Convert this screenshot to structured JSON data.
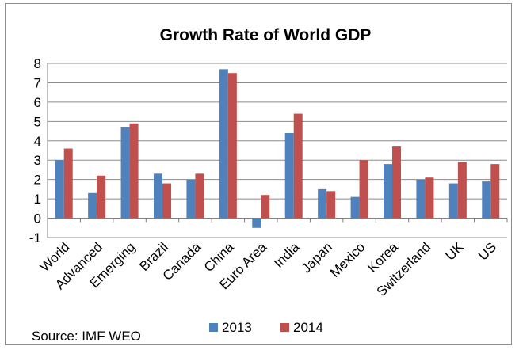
{
  "chart_data": {
    "type": "bar",
    "title": "Growth Rate of World GDP",
    "xlabel": "",
    "ylabel": "",
    "categories": [
      "World",
      "Advanced",
      "Emerging",
      "Brazil",
      "Canada",
      "China",
      "Euro Area",
      "India",
      "Japan",
      "Mexico",
      "Korea",
      "Switzerland",
      "UK",
      "US"
    ],
    "series": [
      {
        "name": "2013",
        "color": "#4f81bd",
        "values": [
          3.0,
          1.3,
          4.7,
          2.3,
          2.0,
          7.7,
          -0.5,
          4.4,
          1.5,
          1.1,
          2.8,
          2.0,
          1.8,
          1.9
        ]
      },
      {
        "name": "2014",
        "color": "#c0504d",
        "values": [
          3.6,
          2.2,
          4.9,
          1.8,
          2.3,
          7.5,
          1.2,
          5.4,
          1.4,
          3.0,
          3.7,
          2.1,
          2.9,
          2.8
        ]
      }
    ],
    "ylim": [
      -1,
      8
    ],
    "yticks": [
      -1,
      0,
      1,
      2,
      3,
      4,
      5,
      6,
      7,
      8
    ],
    "grid": true,
    "legend": "bottom"
  },
  "source": "Source: IMF WEO"
}
